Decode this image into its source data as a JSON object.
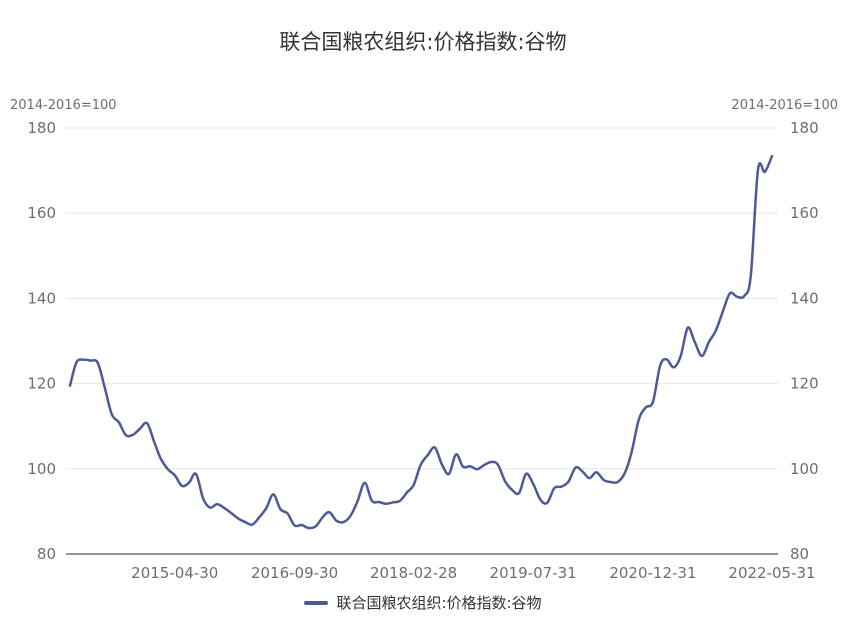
{
  "colors": {
    "series": "#4e5a96",
    "axis": "#6e7079",
    "grid": "#e6e6e6",
    "tick_label": "#6e6e6e"
  },
  "chart_data": {
    "type": "line",
    "title": "联合国粮农组织:价格指数:谷物",
    "ylabel": "2014-2016=100",
    "ylabel_right": "2014-2016=100",
    "ylim": [
      80,
      180
    ],
    "yticks": [
      80,
      100,
      120,
      140,
      160,
      180
    ],
    "y_right_ticks": [
      80,
      100,
      120,
      140,
      160,
      180
    ],
    "x_ticks": [
      "2015-04-30",
      "2016-09-30",
      "2018-02-28",
      "2019-07-31",
      "2020-12-31",
      "2022-05-31"
    ],
    "grid": true,
    "legend_position": "bottom",
    "series": [
      {
        "name": "联合国粮农组织:价格指数:谷物",
        "values": [
          {
            "x": "2014-01-31",
            "y": 119.5
          },
          {
            "x": "2014-02-28",
            "y": 125.0
          },
          {
            "x": "2014-03-31",
            "y": 125.6
          },
          {
            "x": "2014-04-30",
            "y": 125.4
          },
          {
            "x": "2014-05-31",
            "y": 124.9
          },
          {
            "x": "2014-06-30",
            "y": 119.2
          },
          {
            "x": "2014-07-31",
            "y": 112.8
          },
          {
            "x": "2014-08-31",
            "y": 110.9
          },
          {
            "x": "2014-09-30",
            "y": 107.9
          },
          {
            "x": "2014-10-31",
            "y": 108.0
          },
          {
            "x": "2014-11-30",
            "y": 109.4
          },
          {
            "x": "2014-12-31",
            "y": 110.7
          },
          {
            "x": "2015-01-31",
            "y": 106.3
          },
          {
            "x": "2015-02-28",
            "y": 102.4
          },
          {
            "x": "2015-03-31",
            "y": 99.9
          },
          {
            "x": "2015-04-30",
            "y": 98.5
          },
          {
            "x": "2015-05-31",
            "y": 96.0
          },
          {
            "x": "2015-06-30",
            "y": 96.7
          },
          {
            "x": "2015-07-31",
            "y": 98.8
          },
          {
            "x": "2015-08-31",
            "y": 93.0
          },
          {
            "x": "2015-09-30",
            "y": 90.9
          },
          {
            "x": "2015-10-31",
            "y": 91.7
          },
          {
            "x": "2015-11-30",
            "y": 90.8
          },
          {
            "x": "2015-12-31",
            "y": 89.6
          },
          {
            "x": "2016-01-31",
            "y": 88.3
          },
          {
            "x": "2016-02-29",
            "y": 87.5
          },
          {
            "x": "2016-03-31",
            "y": 86.9
          },
          {
            "x": "2016-04-30",
            "y": 88.6
          },
          {
            "x": "2016-05-31",
            "y": 90.8
          },
          {
            "x": "2016-06-30",
            "y": 94.0
          },
          {
            "x": "2016-07-31",
            "y": 90.5
          },
          {
            "x": "2016-08-31",
            "y": 89.5
          },
          {
            "x": "2016-09-30",
            "y": 86.7
          },
          {
            "x": "2016-10-31",
            "y": 86.8
          },
          {
            "x": "2016-11-30",
            "y": 86.1
          },
          {
            "x": "2016-12-31",
            "y": 86.5
          },
          {
            "x": "2017-01-31",
            "y": 88.7
          },
          {
            "x": "2017-02-28",
            "y": 89.8
          },
          {
            "x": "2017-03-31",
            "y": 87.8
          },
          {
            "x": "2017-04-30",
            "y": 87.5
          },
          {
            "x": "2017-05-31",
            "y": 89.0
          },
          {
            "x": "2017-06-30",
            "y": 92.4
          },
          {
            "x": "2017-07-31",
            "y": 96.7
          },
          {
            "x": "2017-08-31",
            "y": 92.5
          },
          {
            "x": "2017-09-30",
            "y": 92.2
          },
          {
            "x": "2017-10-31",
            "y": 91.8
          },
          {
            "x": "2017-11-30",
            "y": 92.1
          },
          {
            "x": "2017-12-31",
            "y": 92.5
          },
          {
            "x": "2018-01-31",
            "y": 94.5
          },
          {
            "x": "2018-02-28",
            "y": 96.2
          },
          {
            "x": "2018-03-31",
            "y": 101.0
          },
          {
            "x": "2018-04-30",
            "y": 103.2
          },
          {
            "x": "2018-05-31",
            "y": 105.0
          },
          {
            "x": "2018-06-30",
            "y": 101.1
          },
          {
            "x": "2018-07-31",
            "y": 98.8
          },
          {
            "x": "2018-08-31",
            "y": 103.4
          },
          {
            "x": "2018-09-30",
            "y": 100.5
          },
          {
            "x": "2018-10-31",
            "y": 100.6
          },
          {
            "x": "2018-11-30",
            "y": 99.9
          },
          {
            "x": "2018-12-31",
            "y": 100.9
          },
          {
            "x": "2019-01-31",
            "y": 101.6
          },
          {
            "x": "2019-02-28",
            "y": 101.0
          },
          {
            "x": "2019-03-31",
            "y": 97.1
          },
          {
            "x": "2019-04-30",
            "y": 95.1
          },
          {
            "x": "2019-05-31",
            "y": 94.3
          },
          {
            "x": "2019-06-30",
            "y": 98.8
          },
          {
            "x": "2019-07-31",
            "y": 96.5
          },
          {
            "x": "2019-08-31",
            "y": 92.8
          },
          {
            "x": "2019-09-30",
            "y": 92.0
          },
          {
            "x": "2019-10-31",
            "y": 95.5
          },
          {
            "x": "2019-11-30",
            "y": 95.8
          },
          {
            "x": "2019-12-31",
            "y": 97.0
          },
          {
            "x": "2020-01-31",
            "y": 100.3
          },
          {
            "x": "2020-02-29",
            "y": 99.4
          },
          {
            "x": "2020-03-31",
            "y": 97.8
          },
          {
            "x": "2020-04-30",
            "y": 99.2
          },
          {
            "x": "2020-05-31",
            "y": 97.4
          },
          {
            "x": "2020-06-30",
            "y": 96.9
          },
          {
            "x": "2020-07-31",
            "y": 96.9
          },
          {
            "x": "2020-08-31",
            "y": 99.0
          },
          {
            "x": "2020-09-30",
            "y": 104.0
          },
          {
            "x": "2020-10-31",
            "y": 111.6
          },
          {
            "x": "2020-11-30",
            "y": 114.4
          },
          {
            "x": "2020-12-31",
            "y": 115.7
          },
          {
            "x": "2021-01-31",
            "y": 124.2
          },
          {
            "x": "2021-02-28",
            "y": 125.7
          },
          {
            "x": "2021-03-31",
            "y": 123.8
          },
          {
            "x": "2021-04-30",
            "y": 126.4
          },
          {
            "x": "2021-05-31",
            "y": 133.1
          },
          {
            "x": "2021-06-30",
            "y": 129.8
          },
          {
            "x": "2021-07-31",
            "y": 126.5
          },
          {
            "x": "2021-08-31",
            "y": 129.8
          },
          {
            "x": "2021-09-30",
            "y": 132.5
          },
          {
            "x": "2021-10-31",
            "y": 137.1
          },
          {
            "x": "2021-11-30",
            "y": 141.2
          },
          {
            "x": "2021-12-31",
            "y": 140.4
          },
          {
            "x": "2022-01-31",
            "y": 140.6
          },
          {
            "x": "2022-02-28",
            "y": 145.3
          },
          {
            "x": "2022-03-31",
            "y": 170.1
          },
          {
            "x": "2022-04-30",
            "y": 169.7
          },
          {
            "x": "2022-05-31",
            "y": 173.4
          }
        ]
      }
    ]
  }
}
